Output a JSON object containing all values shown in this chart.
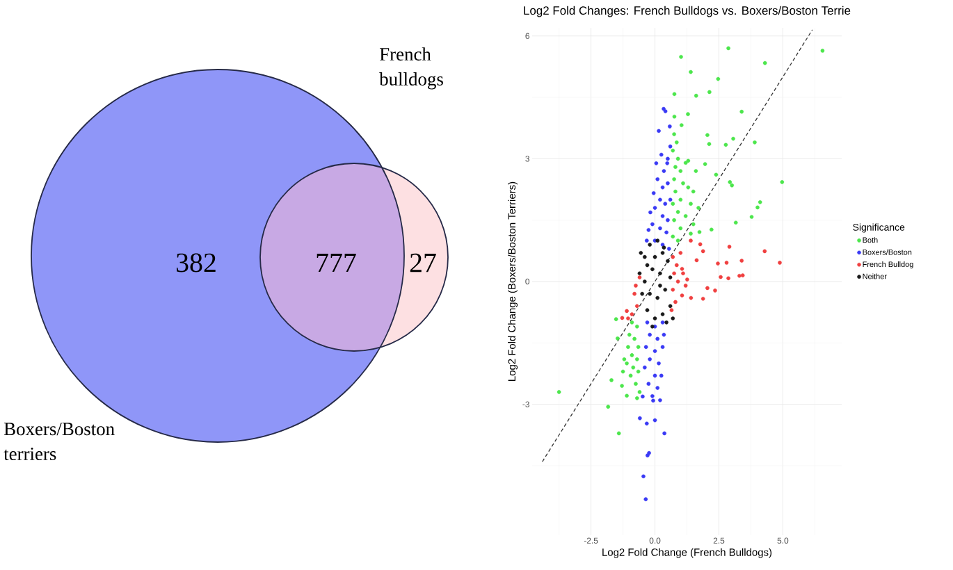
{
  "chart_data": [
    {
      "type": "other",
      "series": [
        {
          "name": "Boxers/Boston terriers"
        },
        {
          "name": "French bulldogs"
        }
      ],
      "annotations": [
        "382",
        "777",
        "27"
      ],
      "colors": [
        "#8f96f8",
        "#c8a9e4",
        "#fde0e2"
      ]
    },
    {
      "type": "scatter",
      "title": "Log2 Fold Changes: French Bulldogs vs. Boxers/Boston Terrie",
      "xlabel": "Log2 Fold Change (French Bulldogs)",
      "ylabel": "Log2 Fold Change (Boxers/Boston Terriers)",
      "legend_title": "Significance",
      "xlim": [
        -4.8,
        7.3
      ],
      "ylim": [
        -6.2,
        6.2
      ],
      "xticks": [
        {
          "value": -2.5,
          "label": "-2.5"
        },
        {
          "value": 0,
          "label": "0.0"
        },
        {
          "value": 2.5,
          "label": "2.5"
        },
        {
          "value": 5,
          "label": "5.0"
        }
      ],
      "yticks": [
        -3,
        0,
        3,
        6
      ],
      "grid": true,
      "legend": "right",
      "marker": "circle",
      "series": [
        {
          "name": "Both",
          "color": "#4ce64c",
          "x": [
            6.55,
            2.87,
            4.3,
            1.02,
            1.4,
            2.47,
            0.76,
            1.61,
            2.13,
            3.39,
            1.29,
            0.76,
            1.04,
            2.05,
            2.12,
            3.06,
            2.77,
            3.9,
            4.97,
            2.93,
            3.01,
            1.96,
            2.39,
            4.11,
            4.01,
            3.78,
            3.16,
            2.21,
            1.74,
            1.4,
            0.75,
            0.85,
            0.7,
            0.9,
            0.8,
            1.0,
            1.2,
            0.75,
            1.1,
            1.3,
            1.5,
            0.8,
            1.0,
            1.4,
            0.7,
            0.9,
            1.2,
            1.7,
            0.75,
            1.0,
            0.7,
            0.9,
            1.6,
            1.3,
            1.5,
            -3.75,
            -1.83,
            -1.41,
            -1.7,
            -1.29,
            -1.1,
            -1.52,
            -1.46,
            -0.9,
            -0.7,
            -1.0,
            -0.8,
            -0.65,
            -1.05,
            -0.9,
            -0.7,
            -1.1,
            -0.85,
            -0.65,
            -0.95,
            -0.75,
            -0.6,
            -0.7,
            -1.2,
            -1.25
          ],
          "values": [
            5.64,
            5.7,
            5.34,
            5.49,
            5.12,
            4.95,
            4.58,
            4.54,
            4.63,
            4.15,
            4.09,
            4.03,
            3.82,
            3.58,
            3.36,
            3.49,
            3.34,
            3.4,
            2.43,
            2.43,
            2.35,
            2.87,
            2.61,
            1.94,
            1.81,
            1.58,
            1.44,
            1.27,
            1.21,
            1.17,
            3.6,
            3.4,
            3.2,
            3.0,
            2.8,
            2.7,
            2.9,
            2.5,
            2.4,
            2.3,
            2.2,
            2.2,
            2.0,
            1.9,
            1.9,
            1.7,
            1.6,
            1.8,
            1.5,
            1.3,
            1.1,
            1.0,
            2.7,
            2.95,
            1.4,
            -2.7,
            -3.06,
            -3.71,
            -2.41,
            -2.55,
            -2.79,
            -0.92,
            -1.39,
            -1.0,
            -1.1,
            -1.3,
            -1.4,
            -1.6,
            -1.6,
            -1.8,
            -1.9,
            -2.0,
            -2.1,
            -2.2,
            -2.3,
            -2.5,
            -2.7,
            -2.85,
            -1.9,
            -2.2
          ]
        },
        {
          "name": "Boxers/Boston",
          "color": "#3a3af5",
          "x": [
            0.41,
            0.34,
            0.15,
            0.58,
            0.25,
            0.05,
            0.48,
            -0.05,
            -0.18,
            -0.25,
            -0.32,
            0.1,
            0.3,
            0.5,
            0.2,
            0.4,
            0.6,
            0.0,
            0.3,
            0.5,
            -0.1,
            0.2,
            0.45,
            0.0,
            0.3,
            0.55,
            0.35,
            0.5,
            0.6,
            -0.3,
            0.0,
            0.3,
            -0.2,
            0.1,
            0.35,
            -0.35,
            0.0,
            0.3,
            -0.2,
            0.15,
            -0.4,
            0.0,
            0.25,
            -0.25,
            0.1,
            -0.1,
            0.2,
            -0.48,
            -0.07,
            -0.59,
            -0.32,
            0.0,
            0.37,
            -0.23,
            -0.29,
            -0.45,
            -0.36
          ],
          "values": [
            4.16,
            4.22,
            3.68,
            3.79,
            3.1,
            2.89,
            2.89,
            2.16,
            1.69,
            1.26,
            1.0,
            2.5,
            2.3,
            2.4,
            2.0,
            1.9,
            2.0,
            1.8,
            1.6,
            1.5,
            1.4,
            1.3,
            1.2,
            1.0,
            0.9,
            0.8,
            2.7,
            3.0,
            3.3,
            -1.0,
            -1.1,
            -1.0,
            -1.3,
            -1.4,
            -1.3,
            -1.6,
            -1.7,
            -1.6,
            -1.9,
            -2.0,
            -2.1,
            -2.3,
            -2.3,
            -2.5,
            -2.6,
            -2.8,
            -2.9,
            -2.81,
            -2.91,
            -3.34,
            -3.47,
            -3.39,
            -3.71,
            -4.19,
            -4.25,
            -4.76,
            -5.32
          ]
        },
        {
          "name": "French Bulldog",
          "color": "#f04040",
          "x": [
            1.4,
            1.77,
            1.88,
            1.63,
            2.91,
            4.29,
            4.88,
            2.46,
            2.8,
            3.39,
            2.57,
            2.87,
            3.3,
            3.43,
            2.05,
            2.35,
            1.88,
            1.41,
            1.06,
            1.26,
            1.06,
            0.7,
            0.85,
            0.75,
            0.9,
            0.7,
            0.8,
            0.65,
            1.0,
            1.1,
            1.2,
            -0.8,
            -0.7,
            -0.9,
            -0.75,
            -0.6,
            -1.05,
            -1.1,
            -1.28
          ],
          "values": [
            1.0,
            0.91,
            0.74,
            0.52,
            0.85,
            0.74,
            0.46,
            0.44,
            0.46,
            0.51,
            0.11,
            0.08,
            0.14,
            0.15,
            -0.16,
            -0.22,
            -0.42,
            -0.4,
            -0.34,
            0.05,
            0.31,
            0.6,
            0.4,
            0.2,
            0.0,
            -0.2,
            -0.5,
            -0.7,
            0.7,
            0.2,
            -0.1,
            -0.3,
            -0.6,
            -0.8,
            -0.1,
            0.1,
            -0.9,
            -0.72,
            -0.89
          ]
        },
        {
          "name": "Neither",
          "color": "#1a1a1a",
          "x": [
            -0.6,
            -0.4,
            -0.2,
            0.1,
            0.3,
            0.5,
            0.6,
            -0.5,
            -0.3,
            0.0,
            0.3,
            0.6,
            0.7,
            -0.4,
            -0.1,
            0.2,
            0.4,
            -0.2,
            0.1,
            -0.55,
            0.0,
            -0.1,
            0.45,
            0.2,
            -0.3,
            0.35
          ],
          "values": [
            0.2,
            0.6,
            0.9,
            1.0,
            0.7,
            0.5,
            0.1,
            -0.3,
            -0.7,
            -0.9,
            -0.8,
            -0.6,
            -0.9,
            0.0,
            0.3,
            0.2,
            -0.2,
            -0.3,
            -0.4,
            0.7,
            0.6,
            -1.1,
            -1.0,
            -0.1,
            0.4,
            0.83
          ]
        },
        {
          "type": "line",
          "color": "#333333",
          "line_style": "dashed",
          "marker": "none",
          "x": [
            -4.4,
            6.15
          ],
          "values": [
            -4.4,
            6.15
          ]
        }
      ]
    }
  ]
}
